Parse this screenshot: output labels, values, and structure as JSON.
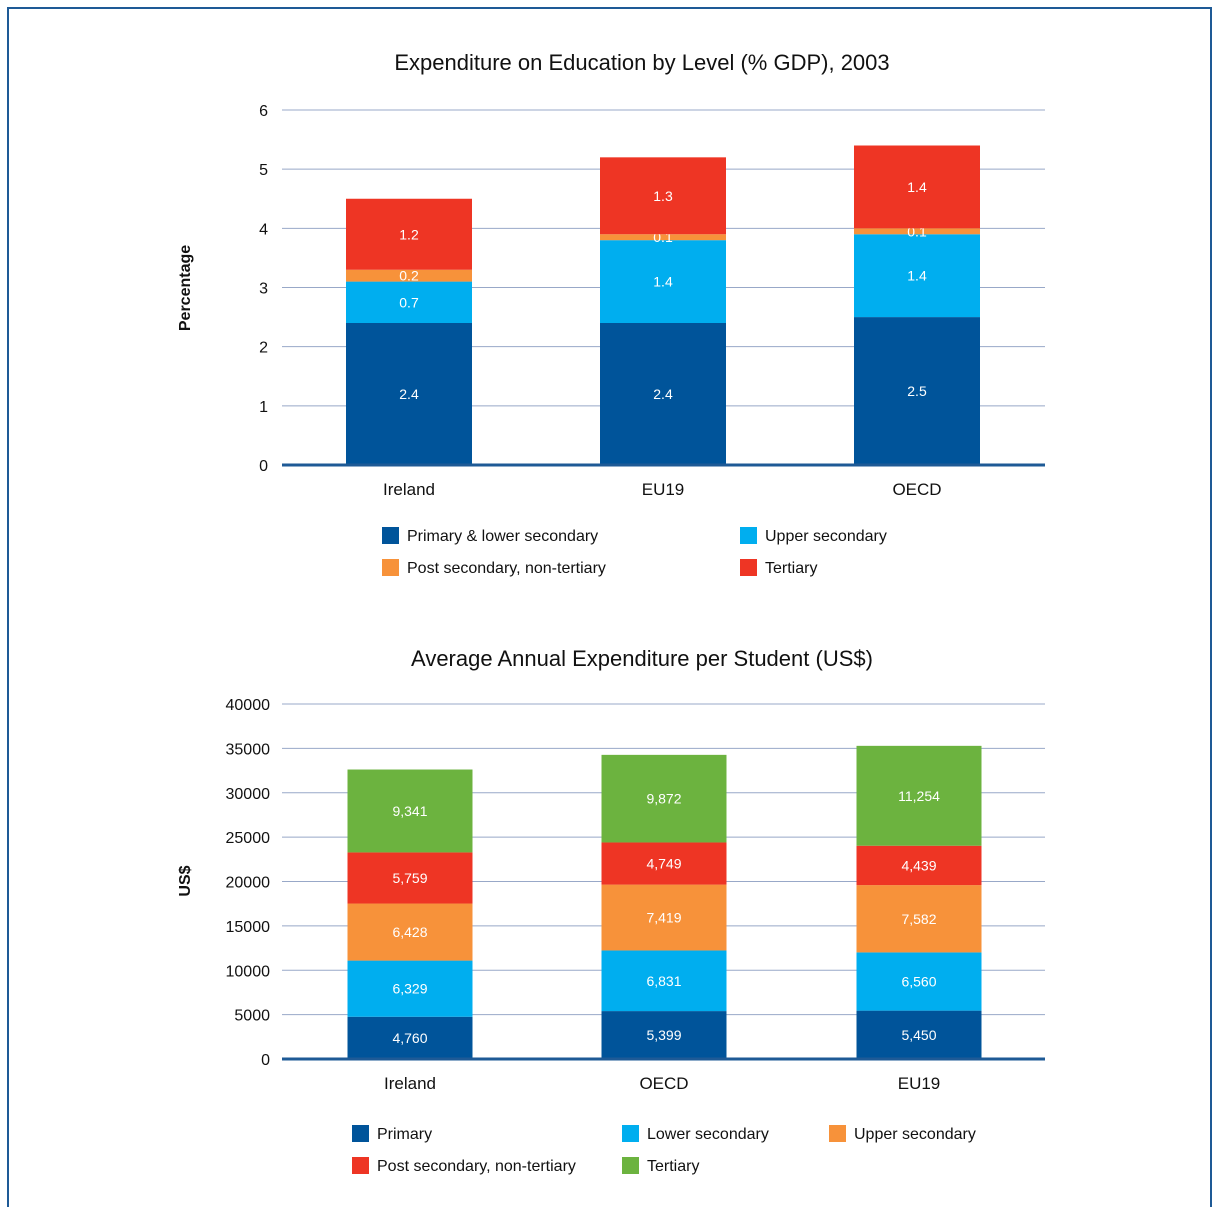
{
  "colors": {
    "frame": "#1e5a96",
    "grid": "#98a8c8",
    "axis": "#1e5a96",
    "text": "#111111",
    "segment_label": "#ffffff"
  },
  "chart_data": [
    {
      "type": "bar",
      "stacked": true,
      "title": "Expenditure on Education by Level (% GDP), 2003",
      "xlabel": "",
      "ylabel": "Percentage",
      "ylim": [
        0,
        6
      ],
      "yticks": [
        "0",
        "1",
        "2",
        "3",
        "4",
        "5",
        "6"
      ],
      "grid": true,
      "legend_position": "bottom",
      "categories": [
        "Ireland",
        "EU19",
        "OECD"
      ],
      "series": [
        {
          "name": "Primary & lower secondary",
          "color": "#00549a",
          "values": [
            2.4,
            2.4,
            2.5
          ],
          "labels": [
            "2.4",
            "2.4",
            "2.5"
          ]
        },
        {
          "name": "Upper secondary",
          "color": "#00aeef",
          "values": [
            0.7,
            1.4,
            1.4
          ],
          "labels": [
            "0.7",
            "1.4",
            "1.4"
          ]
        },
        {
          "name": "Post secondary, non-tertiary",
          "color": "#f7923a",
          "values": [
            0.2,
            0.1,
            0.1
          ],
          "labels": [
            "0.2",
            "0.1",
            "0.1"
          ]
        },
        {
          "name": "Tertiary",
          "color": "#ee3524",
          "values": [
            1.2,
            1.3,
            1.4
          ],
          "labels": [
            "1.2",
            "1.3",
            "1.4"
          ]
        }
      ]
    },
    {
      "type": "bar",
      "stacked": true,
      "title": "Average Annual Expenditure per Student (US$)",
      "xlabel": "",
      "ylabel": "US$",
      "ylim": [
        0,
        40000
      ],
      "yticks": [
        "0",
        "5000",
        "10000",
        "15000",
        "20000",
        "25000",
        "30000",
        "35000",
        "40000"
      ],
      "grid": true,
      "legend_position": "bottom",
      "categories": [
        "Ireland",
        "OECD",
        "EU19"
      ],
      "series": [
        {
          "name": "Primary",
          "color": "#00549a",
          "values": [
            4760,
            5399,
            5450
          ],
          "labels": [
            "4,760",
            "5,399",
            "5,450"
          ]
        },
        {
          "name": "Lower secondary",
          "color": "#00aeef",
          "values": [
            6329,
            6831,
            6560
          ],
          "labels": [
            "6,329",
            "6,831",
            "6,560"
          ]
        },
        {
          "name": "Upper secondary",
          "color": "#f7923a",
          "values": [
            6428,
            7419,
            7582
          ],
          "labels": [
            "6,428",
            "7,419",
            "7,582"
          ]
        },
        {
          "name": "Post secondary, non-tertiary",
          "color": "#ee3524",
          "values": [
            5759,
            4749,
            4439
          ],
          "labels": [
            "5,759",
            "4,749",
            "4,439"
          ]
        },
        {
          "name": "Tertiary",
          "color": "#6cb33f",
          "values": [
            9341,
            9872,
            11254
          ],
          "labels": [
            "9,341",
            "9,872",
            "11,254"
          ]
        }
      ]
    }
  ]
}
